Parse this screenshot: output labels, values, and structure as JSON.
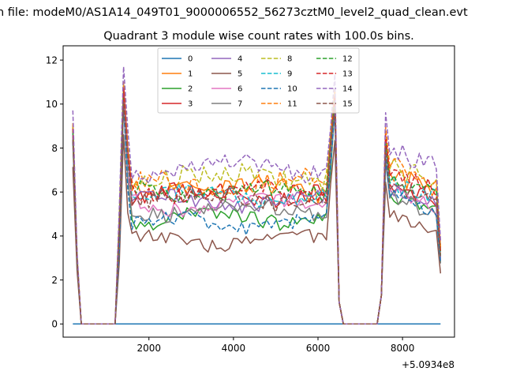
{
  "chart_data": {
    "type": "line",
    "suptitle": "n file: modeM0/AS1A14_049T01_9000006552_56273cztM0_level2_quad_clean.evt",
    "title": "Quadrant 3 module wise count rates with 100.0s bins.",
    "xlabel": "",
    "ylabel": "",
    "x_offset_text": "+5.0934e8",
    "xlim": [
      -30,
      9230
    ],
    "ylim": [
      -0.6,
      12.65
    ],
    "xticks": [
      2000,
      4000,
      6000,
      8000
    ],
    "xtick_labels": [
      "2000",
      "4000",
      "6000",
      "8000"
    ],
    "yticks": [
      0,
      2,
      4,
      6,
      8,
      10,
      12
    ],
    "ytick_labels": [
      "0",
      "2",
      "4",
      "6",
      "8",
      "10",
      "12"
    ],
    "grid": false,
    "legend_position": "top-center",
    "legend_columns": 4,
    "x_start": 200,
    "x_step": 100,
    "x_count": 88,
    "active_windows": [
      [
        200,
        300
      ],
      [
        1300,
        6500
      ],
      [
        7500,
        8900
      ]
    ],
    "series": [
      {
        "name": "0",
        "color": "#1f77b4",
        "dash": "solid",
        "spike": 0.0,
        "plateau1": 0.0,
        "plateau2": 0.0,
        "jitter": 0.0
      },
      {
        "name": "1",
        "color": "#ff7f0e",
        "dash": "solid",
        "spike": 10.8,
        "plateau1": 6.2,
        "plateau2": 6.6,
        "jitter": 0.5
      },
      {
        "name": "2",
        "color": "#2ca02c",
        "dash": "solid",
        "spike": 10.3,
        "plateau1": 4.8,
        "plateau2": 5.6,
        "jitter": 0.35
      },
      {
        "name": "3",
        "color": "#d62728",
        "dash": "solid",
        "spike": 10.9,
        "plateau1": 5.9,
        "plateau2": 6.1,
        "jitter": 0.4
      },
      {
        "name": "4",
        "color": "#9467bd",
        "dash": "solid",
        "spike": 10.4,
        "plateau1": 5.6,
        "plateau2": 5.9,
        "jitter": 0.35
      },
      {
        "name": "5",
        "color": "#8c564b",
        "dash": "solid",
        "spike": 8.6,
        "plateau1": 3.8,
        "plateau2": 4.6,
        "jitter": 0.3
      },
      {
        "name": "6",
        "color": "#e377c2",
        "dash": "solid",
        "spike": 10.2,
        "plateau1": 5.4,
        "plateau2": 5.8,
        "jitter": 0.35
      },
      {
        "name": "7",
        "color": "#7f7f7f",
        "dash": "solid",
        "spike": 10.0,
        "plateau1": 5.2,
        "plateau2": 5.5,
        "jitter": 0.35
      },
      {
        "name": "8",
        "color": "#bcbd22",
        "dash": "dashed",
        "spike": 10.9,
        "plateau1": 6.7,
        "plateau2": 6.9,
        "jitter": 0.5
      },
      {
        "name": "9",
        "color": "#17becf",
        "dash": "dashed",
        "spike": 10.5,
        "plateau1": 5.8,
        "plateau2": 6.2,
        "jitter": 0.4
      },
      {
        "name": "10",
        "color": "#1f77b4",
        "dash": "dashed",
        "spike": 10.0,
        "plateau1": 4.6,
        "plateau2": 5.6,
        "jitter": 0.35
      },
      {
        "name": "11",
        "color": "#ff7f0e",
        "dash": "dashed",
        "spike": 11.0,
        "plateau1": 6.4,
        "plateau2": 7.0,
        "jitter": 0.45
      },
      {
        "name": "12",
        "color": "#2ca02c",
        "dash": "dashed",
        "spike": 10.6,
        "plateau1": 6.0,
        "plateau2": 6.3,
        "jitter": 0.4
      },
      {
        "name": "13",
        "color": "#d62728",
        "dash": "dashed",
        "spike": 10.7,
        "plateau1": 6.0,
        "plateau2": 6.6,
        "jitter": 0.4
      },
      {
        "name": "14",
        "color": "#9467bd",
        "dash": "dashed",
        "spike": 11.7,
        "plateau1": 7.1,
        "plateau2": 7.6,
        "jitter": 0.45
      },
      {
        "name": "15",
        "color": "#8c564b",
        "dash": "dashed",
        "spike": 10.1,
        "plateau1": 5.7,
        "plateau2": 6.0,
        "jitter": 0.4
      }
    ]
  }
}
